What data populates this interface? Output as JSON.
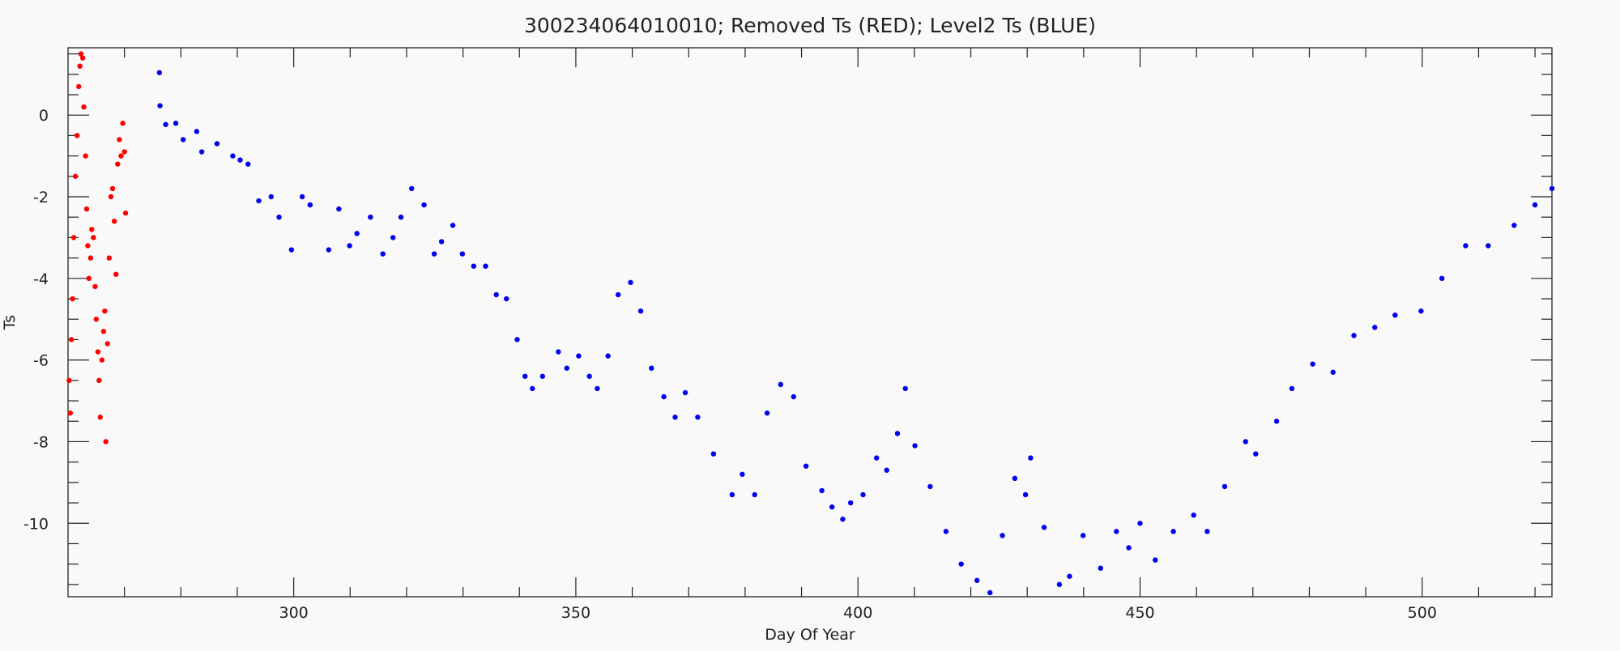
{
  "chart_data": {
    "type": "scatter",
    "title": "300234064010010; Removed Ts (RED); Level2 Ts (BLUE)",
    "x_label": "Day Of Year",
    "y_label": "Ts",
    "xlim": [
      260,
      523
    ],
    "ylim": [
      -11.8,
      1.65
    ],
    "xticks": [
      300,
      350,
      400,
      450,
      500
    ],
    "yticks": [
      -10,
      -8,
      -6,
      -4,
      -2,
      0
    ],
    "xminorticks": [
      270,
      280,
      290,
      310,
      320,
      330,
      340,
      360,
      370,
      380,
      390,
      410,
      420,
      430,
      440,
      460,
      470,
      480,
      490,
      510,
      520
    ],
    "yminorticks": [
      -11.5,
      -11,
      -10.5,
      -9.5,
      -9,
      -8.5,
      -7.5,
      -7,
      -6.5,
      -5.5,
      -5,
      -4.5,
      -3.5,
      -3,
      -2.5,
      -1.5,
      -1,
      -0.5,
      0.5,
      1,
      1.5
    ],
    "series": [
      {
        "name": "Removed Ts",
        "color": "#ff0000",
        "x": [
          260.2,
          260.4,
          260.6,
          260.8,
          261,
          261.3,
          261.6,
          261.9,
          262.1,
          262.3,
          262.6,
          262.8,
          263.1,
          263.3,
          263.5,
          263.7,
          264,
          264.2,
          264.5,
          264.8,
          265,
          265.3,
          265.5,
          265.7,
          266,
          266.3,
          266.5,
          266.7,
          267,
          267.3,
          267.6,
          267.9,
          268.2,
          268.5,
          268.8,
          269.1,
          269.4,
          269.7,
          270,
          270.2
        ],
        "values": [
          -6.5,
          -7.3,
          -5.5,
          -4.5,
          -3.0,
          -1.5,
          -0.5,
          0.7,
          1.2,
          1.5,
          1.4,
          0.2,
          -1.0,
          -2.3,
          -3.2,
          -4.0,
          -3.5,
          -2.8,
          -3.0,
          -4.2,
          -5.0,
          -5.8,
          -6.5,
          -7.4,
          -6.0,
          -5.3,
          -4.8,
          -8.0,
          -5.6,
          -3.5,
          -2.0,
          -1.8,
          -2.6,
          -3.9,
          -1.2,
          -0.6,
          -1.0,
          -0.2,
          -0.9,
          -2.4
        ]
      },
      {
        "name": "Level2 Ts",
        "color": "#0000ee",
        "x": [
          276.2,
          276.3,
          277.3,
          279.1,
          280.4,
          282.8,
          283.7,
          286.4,
          289.2,
          290.5,
          291.9,
          293.8,
          296,
          297.4,
          299.6,
          301.5,
          302.9,
          306.2,
          308,
          309.9,
          311.2,
          313.6,
          315.8,
          317.6,
          319,
          320.9,
          323.1,
          324.9,
          326.2,
          328.2,
          329.9,
          331.9,
          334,
          335.9,
          337.7,
          339.6,
          341,
          342.3,
          344.1,
          346.9,
          348.4,
          350.5,
          352.4,
          353.8,
          355.7,
          357.5,
          359.7,
          361.5,
          363.4,
          365.6,
          367.6,
          369.4,
          371.6,
          374.4,
          377.7,
          379.5,
          381.7,
          383.9,
          386.3,
          388.6,
          390.8,
          393.6,
          395.4,
          397.3,
          398.7,
          400.9,
          403.3,
          405.1,
          407,
          408.4,
          410.1,
          412.8,
          415.6,
          418.3,
          421.1,
          423.4,
          425.6,
          427.8,
          429.7,
          430.6,
          433,
          435.7,
          437.5,
          439.9,
          443,
          445.8,
          448,
          450,
          452.7,
          455.9,
          459.5,
          461.9,
          465,
          468.7,
          470.5,
          474.2,
          476.9,
          480.6,
          484.2,
          487.9,
          491.6,
          495.2,
          499.8,
          503.5,
          507.7,
          511.7,
          516.3,
          520,
          523
        ],
        "values": [
          1.04,
          0.23,
          -0.23,
          -0.2,
          -0.6,
          -0.4,
          -0.9,
          -0.7,
          -1.0,
          -1.1,
          -1.2,
          -2.1,
          -2.0,
          -2.5,
          -3.3,
          -2.0,
          -2.2,
          -3.3,
          -2.3,
          -3.2,
          -2.9,
          -2.5,
          -3.4,
          -3.0,
          -2.5,
          -1.8,
          -2.2,
          -3.4,
          -3.1,
          -2.7,
          -3.4,
          -3.7,
          -3.7,
          -4.4,
          -4.5,
          -5.5,
          -6.4,
          -6.7,
          -6.4,
          -5.8,
          -6.2,
          -5.9,
          -6.4,
          -6.7,
          -5.9,
          -4.4,
          -4.1,
          -4.8,
          -6.2,
          -6.9,
          -7.4,
          -6.8,
          -7.4,
          -8.3,
          -9.3,
          -8.8,
          -9.3,
          -7.3,
          -6.6,
          -6.9,
          -8.6,
          -9.2,
          -9.6,
          -9.9,
          -9.5,
          -9.3,
          -8.4,
          -8.7,
          -7.8,
          -6.7,
          -8.1,
          -9.1,
          -10.2,
          -11.0,
          -11.4,
          -11.7,
          -10.3,
          -8.9,
          -9.3,
          -8.4,
          -10.1,
          -11.5,
          -11.3,
          -10.3,
          -11.1,
          -10.2,
          -10.6,
          -10.0,
          -10.9,
          -10.2,
          -9.8,
          -10.2,
          -9.1,
          -8.0,
          -8.3,
          -7.5,
          -6.7,
          -6.1,
          -6.3,
          -5.4,
          -5.2,
          -4.9,
          -4.8,
          -4.0,
          -3.2,
          -3.2,
          -2.7,
          -2.2,
          -1.8
        ]
      }
    ]
  }
}
